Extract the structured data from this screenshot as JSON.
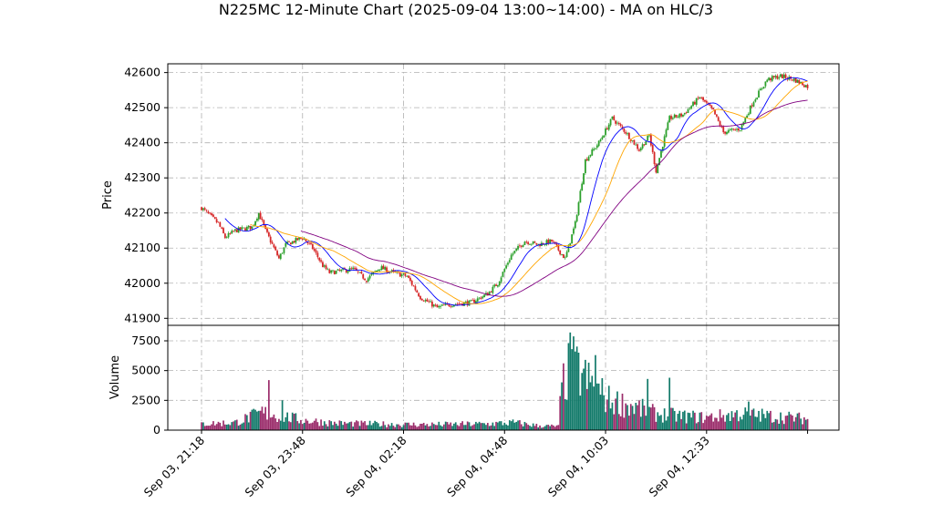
{
  "chart_data": {
    "type": "candlestick",
    "title": "N225MC 12-Minute Chart (2025-09-04 13:00~14:00) - MA on HLC/3",
    "price_panel": {
      "ylabel": "Price",
      "ylim": [
        41880,
        42625
      ],
      "yticks": [
        41900,
        42000,
        42100,
        42200,
        42300,
        42400,
        42500,
        42600
      ],
      "ma_colors": [
        "#0000ff",
        "#ffa500",
        "#800080"
      ]
    },
    "volume_panel": {
      "ylabel": "Volume",
      "ylim": [
        0,
        8800
      ],
      "yticks": [
        0,
        2500,
        5000,
        7500
      ],
      "ytick_labels": [
        "0",
        "2500",
        "5000",
        "7500"
      ]
    },
    "x_ticks": [
      {
        "index": 0,
        "label": "Sep 03, 21:18"
      },
      {
        "index": 60,
        "label": "Sep 03, 23:48"
      },
      {
        "index": 120,
        "label": "Sep 04, 02:18"
      },
      {
        "index": 180,
        "label": "Sep 04, 04:48"
      },
      {
        "index": 240,
        "label": "Sep 04, 10:03"
      },
      {
        "index": 300,
        "label": "Sep 04, 12:33"
      }
    ],
    "n_bars": 361,
    "close_path": [
      [
        0,
        42215
      ],
      [
        10,
        42170
      ],
      [
        14,
        42130
      ],
      [
        20,
        42150
      ],
      [
        30,
        42160
      ],
      [
        34,
        42200
      ],
      [
        38,
        42150
      ],
      [
        46,
        42070
      ],
      [
        50,
        42110
      ],
      [
        60,
        42130
      ],
      [
        66,
        42100
      ],
      [
        72,
        42050
      ],
      [
        76,
        42030
      ],
      [
        90,
        42040
      ],
      [
        98,
        42010
      ],
      [
        106,
        42045
      ],
      [
        114,
        42030
      ],
      [
        122,
        42020
      ],
      [
        130,
        41960
      ],
      [
        140,
        41930
      ],
      [
        148,
        41940
      ],
      [
        160,
        41945
      ],
      [
        170,
        41970
      ],
      [
        176,
        42000
      ],
      [
        184,
        42080
      ],
      [
        192,
        42120
      ],
      [
        200,
        42110
      ],
      [
        208,
        42120
      ],
      [
        216,
        42070
      ],
      [
        222,
        42170
      ],
      [
        228,
        42350
      ],
      [
        236,
        42400
      ],
      [
        244,
        42470
      ],
      [
        252,
        42430
      ],
      [
        260,
        42380
      ],
      [
        266,
        42420
      ],
      [
        270,
        42320
      ],
      [
        278,
        42470
      ],
      [
        286,
        42480
      ],
      [
        296,
        42530
      ],
      [
        304,
        42490
      ],
      [
        310,
        42430
      ],
      [
        320,
        42440
      ],
      [
        328,
        42520
      ],
      [
        336,
        42580
      ],
      [
        344,
        42590
      ],
      [
        352,
        42580
      ],
      [
        360,
        42560
      ]
    ],
    "volume_path": [
      [
        0,
        500
      ],
      [
        20,
        600
      ],
      [
        36,
        1400
      ],
      [
        60,
        800
      ],
      [
        80,
        550
      ],
      [
        100,
        500
      ],
      [
        120,
        450
      ],
      [
        140,
        450
      ],
      [
        170,
        500
      ],
      [
        186,
        600
      ],
      [
        200,
        350
      ],
      [
        212,
        300
      ],
      [
        214,
        3500
      ],
      [
        220,
        5200
      ],
      [
        230,
        3800
      ],
      [
        242,
        2400
      ],
      [
        256,
        1900
      ],
      [
        270,
        1300
      ],
      [
        286,
        1100
      ],
      [
        300,
        1000
      ],
      [
        320,
        1300
      ],
      [
        340,
        1100
      ],
      [
        360,
        900
      ]
    ],
    "volume_spikes": [
      [
        40,
        4200
      ],
      [
        48,
        2500
      ],
      [
        219,
        8200
      ],
      [
        220,
        6800
      ],
      [
        222,
        6600
      ],
      [
        226,
        4800
      ],
      [
        234,
        6300
      ],
      [
        265,
        4300
      ],
      [
        278,
        4400
      ],
      [
        325,
        2400
      ]
    ]
  }
}
